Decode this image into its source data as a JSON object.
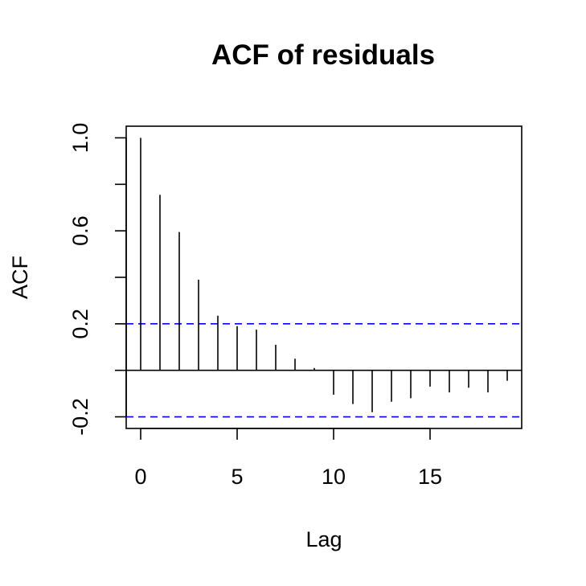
{
  "chart_data": {
    "type": "bar",
    "title": "ACF of residuals",
    "xlabel": "Lag",
    "ylabel": "ACF",
    "x": [
      0,
      1,
      2,
      3,
      4,
      5,
      6,
      7,
      8,
      9,
      10,
      11,
      12,
      13,
      14,
      15,
      16,
      17,
      18,
      19
    ],
    "values": [
      1.0,
      0.755,
      0.595,
      0.39,
      0.235,
      0.19,
      0.175,
      0.11,
      0.05,
      0.01,
      -0.105,
      -0.145,
      -0.18,
      -0.135,
      -0.12,
      -0.07,
      -0.095,
      -0.075,
      -0.095,
      -0.045
    ],
    "conf_limits": [
      0.2,
      -0.2
    ],
    "xlim": [
      -0.75,
      19.75
    ],
    "ylim": [
      -0.25,
      1.05
    ],
    "xticks": [
      0,
      5,
      10,
      15
    ],
    "xtick_labels": [
      "0",
      "5",
      "10",
      "15"
    ],
    "yticks": [
      -0.2,
      0.0,
      0.2,
      0.4,
      0.6,
      0.8,
      1.0
    ],
    "ytick_labels": [
      "-0.2",
      "",
      "0.2",
      "",
      "0.6",
      "",
      "1.0"
    ],
    "grid": false,
    "colors": {
      "bars": "#000000",
      "zero_line": "#000000",
      "conf_line": "#0000FF",
      "frame": "#000000"
    }
  }
}
